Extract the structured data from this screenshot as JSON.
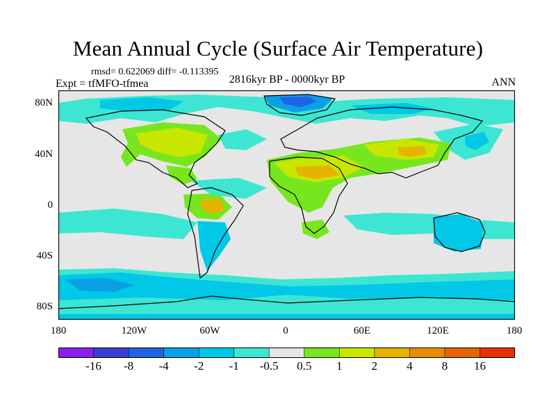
{
  "title": "Mean Annual Cycle (Surface Air Temperature)",
  "stats": "rmsd= 0.622069 diff= -0.113395",
  "experiment": "Expt = tfMFO-tfmea",
  "period": "2816kyr BP - 0000kyr BP",
  "season": "ANN",
  "y_axis_labels": [
    "80N",
    "40N",
    "0",
    "40S",
    "80S"
  ],
  "x_axis_labels": [
    "180",
    "120W",
    "60W",
    "0",
    "60E",
    "120E",
    "180"
  ],
  "colorbar": {
    "labels": [
      "-16",
      "-8",
      "-4",
      "-2",
      "-1",
      "-0.5",
      "0.5",
      "1",
      "2",
      "4",
      "8",
      "16"
    ],
    "colors": [
      "#8a1ef0",
      "#3c3cd8",
      "#1e64e6",
      "#0aa0e6",
      "#00c8e6",
      "#3ce6d2",
      "#e6e6e6",
      "#78e61e",
      "#c8e600",
      "#e6b400",
      "#e68c00",
      "#e66400",
      "#e63200"
    ]
  },
  "palette": {
    "ocean_background": "#e6e6e6",
    "cool_light": "#3ce6d2",
    "cool": "#00c8e6",
    "cooler": "#0aa0e6",
    "coldest": "#1e64e6",
    "warm_light": "#78e61e",
    "warm": "#c8e600",
    "warmer": "#e6b400"
  }
}
